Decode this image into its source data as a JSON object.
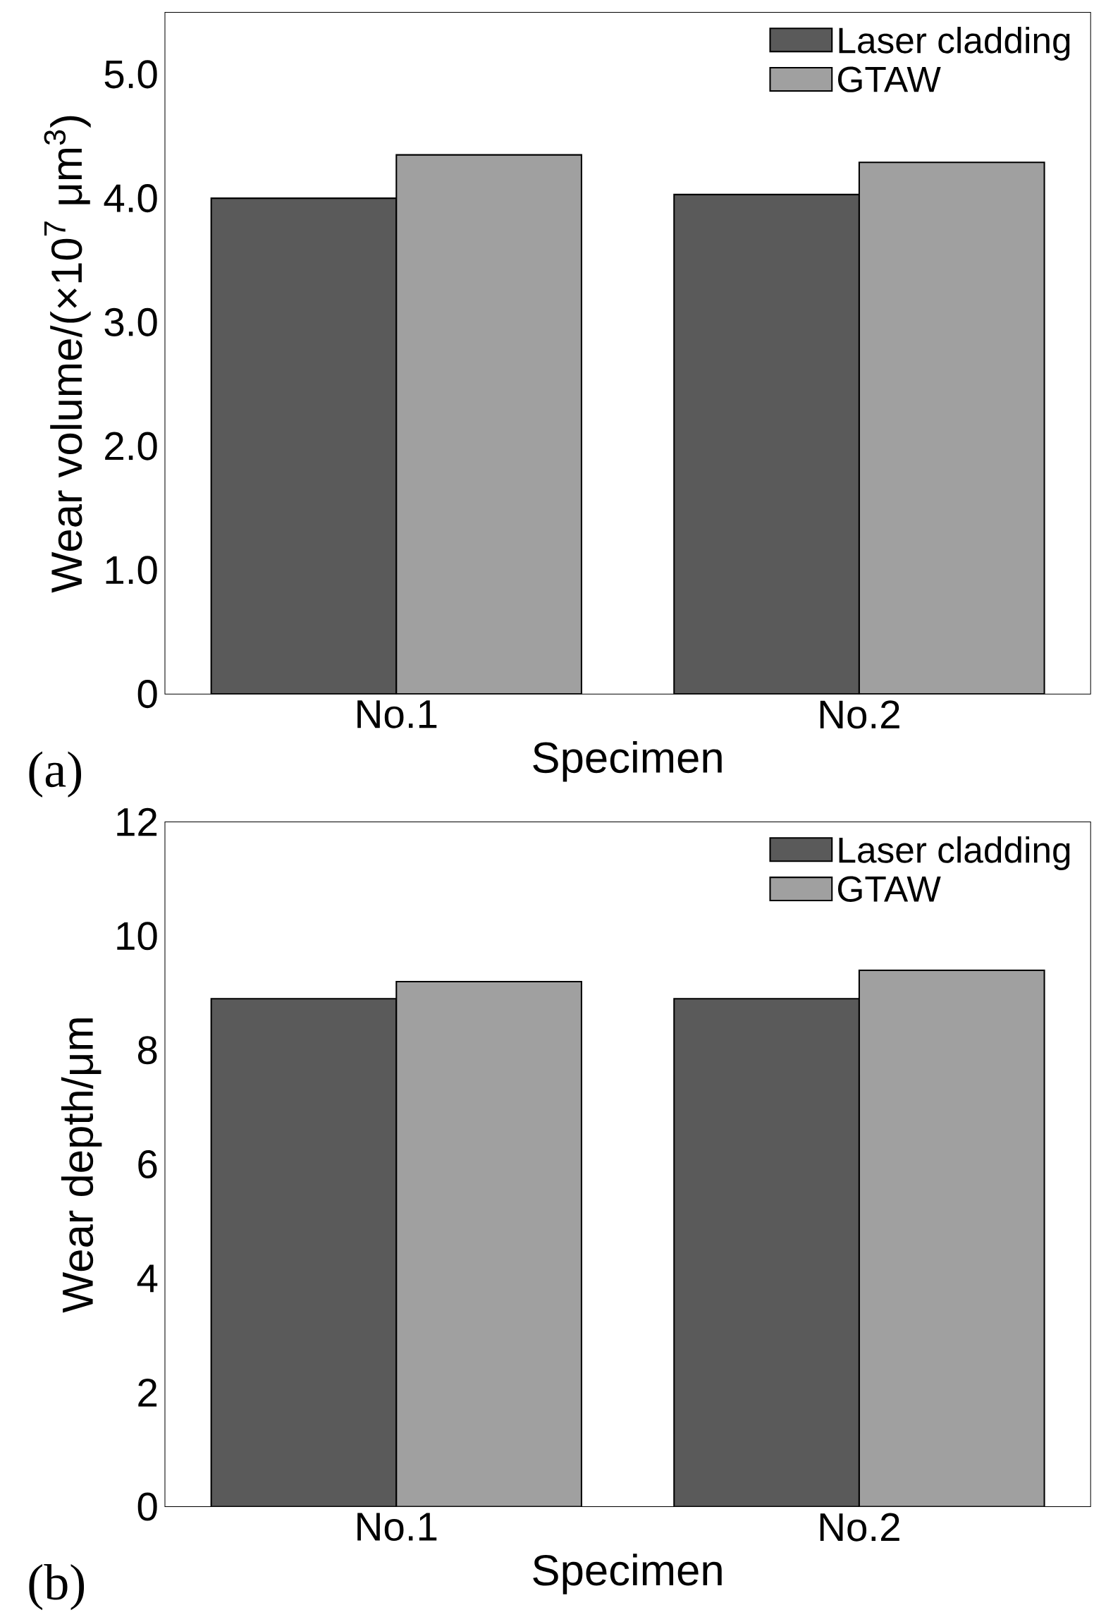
{
  "chart_data": [
    {
      "type": "bar",
      "xlabel": "Specimen",
      "ylabel": "Wear volume/(×10$^{7}$ μm$^{3}$)",
      "categories": [
        "No.1",
        "No.2"
      ],
      "series": [
        {
          "name": "Laser cladding",
          "color": "#5a5a5a",
          "values": [
            4.0,
            4.03
          ]
        },
        {
          "name": "GTAW",
          "color": "#a0a0a0",
          "values": [
            4.35,
            4.29
          ]
        }
      ],
      "ylim": [
        0,
        5.5
      ],
      "yticks": [
        0,
        {
          "value": 1,
          "label": "1.0"
        },
        {
          "value": 2,
          "label": "2.0"
        },
        {
          "value": 3,
          "label": "3.0"
        },
        {
          "value": 4,
          "label": "4.0"
        },
        {
          "value": 5,
          "label": "5.0"
        }
      ],
      "legend": "top right",
      "annotations": [
        "(a)"
      ]
    },
    {
      "type": "bar",
      "xlabel": "Specimen",
      "ylabel": "Wear depth/μm",
      "categories": [
        "No.1",
        "No.2"
      ],
      "series": [
        {
          "name": "Laser cladding",
          "color": "#5a5a5a",
          "values": [
            8.9,
            8.9
          ]
        },
        {
          "name": "GTAW",
          "color": "#a0a0a0",
          "values": [
            9.2,
            9.4
          ]
        }
      ],
      "ylim": [
        0,
        12
      ],
      "yticks": [
        0,
        2,
        4,
        6,
        8,
        10,
        12
      ],
      "legend": "top right",
      "annotations": [
        "(b)"
      ]
    }
  ]
}
